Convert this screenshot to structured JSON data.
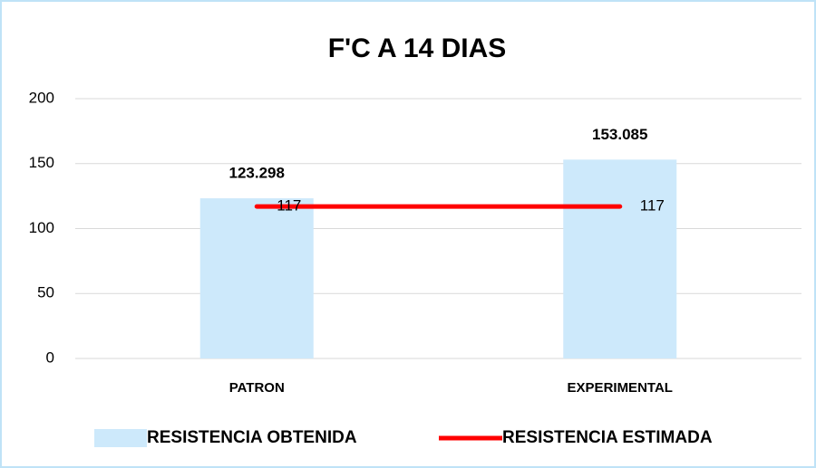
{
  "chart_data": {
    "type": "bar",
    "title": "F'C A 14 DIAS",
    "categories": [
      "PATRON",
      "EXPERIMENTAL"
    ],
    "series": [
      {
        "name": "RESISTENCIA OBTENIDA",
        "type": "bar",
        "color": "#cde9fb",
        "values": [
          123.298,
          153.085
        ]
      },
      {
        "name": "RESISTENCIA ESTIMADA",
        "type": "line",
        "color": "#ff0000",
        "values": [
          117,
          117
        ]
      }
    ],
    "ylim": [
      0,
      200
    ],
    "yticks": [
      0,
      50,
      100,
      150,
      200
    ],
    "grid": true,
    "legend": "bottom"
  }
}
